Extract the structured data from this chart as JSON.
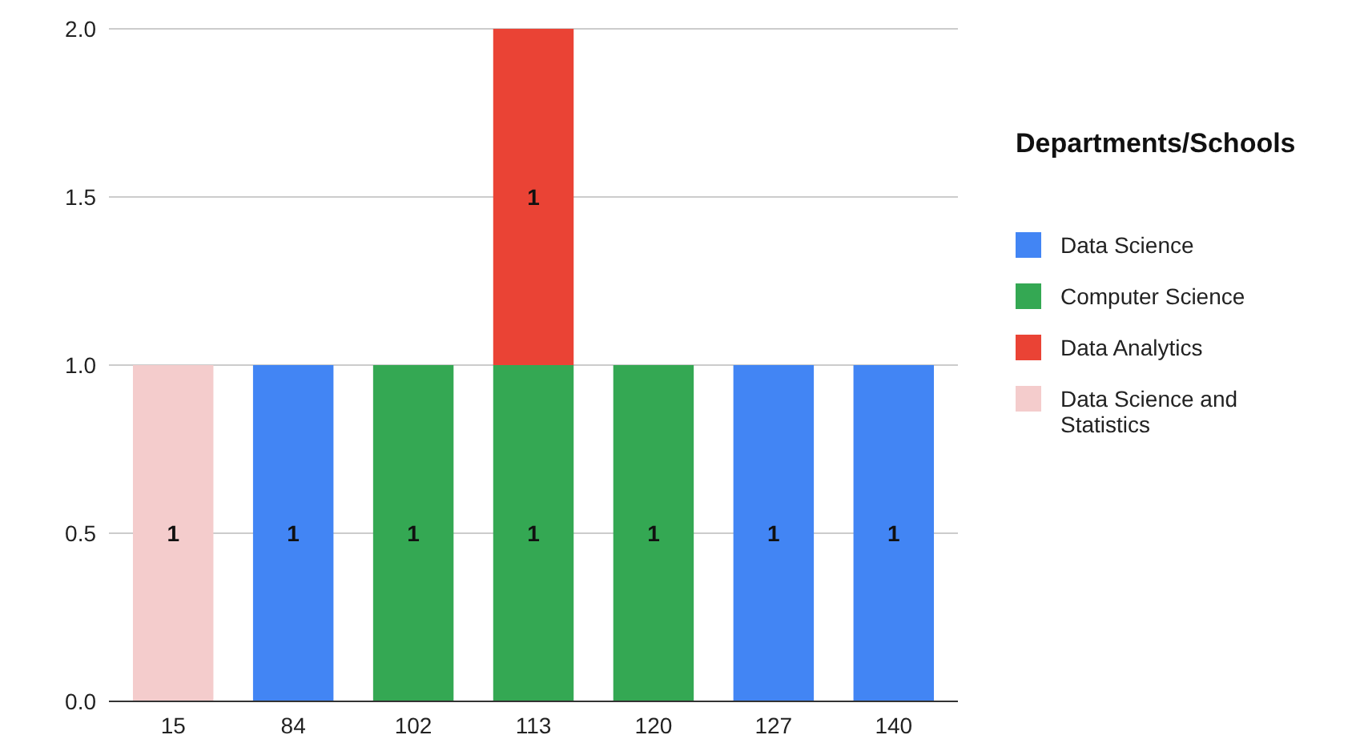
{
  "chart_data": {
    "type": "bar",
    "stacked": true,
    "legend_title": "Departments/Schools",
    "legend": "right",
    "grid": "y",
    "data_labels": true,
    "categories": [
      "15",
      "84",
      "102",
      "113",
      "120",
      "127",
      "140"
    ],
    "ylim": [
      0,
      2
    ],
    "yticks": [
      {
        "value": 0,
        "label": "0.0"
      },
      {
        "value": 0.5,
        "label": "0.5"
      },
      {
        "value": 1,
        "label": "1.0"
      },
      {
        "value": 1.5,
        "label": "1.5"
      },
      {
        "value": 2,
        "label": "2.0"
      }
    ],
    "series": [
      {
        "name": "Data Science",
        "color": "#4285f4",
        "values": [
          null,
          1,
          null,
          null,
          null,
          1,
          1
        ]
      },
      {
        "name": "Computer Science",
        "color": "#34a853",
        "values": [
          null,
          null,
          1,
          1,
          1,
          null,
          null
        ]
      },
      {
        "name": "Data Analytics",
        "color": "#ea4335",
        "values": [
          null,
          null,
          null,
          1,
          null,
          null,
          null
        ]
      },
      {
        "name": "Data Science and Statistics",
        "color": "#f4cccc",
        "values": [
          1,
          null,
          null,
          null,
          null,
          null,
          null
        ]
      }
    ]
  }
}
